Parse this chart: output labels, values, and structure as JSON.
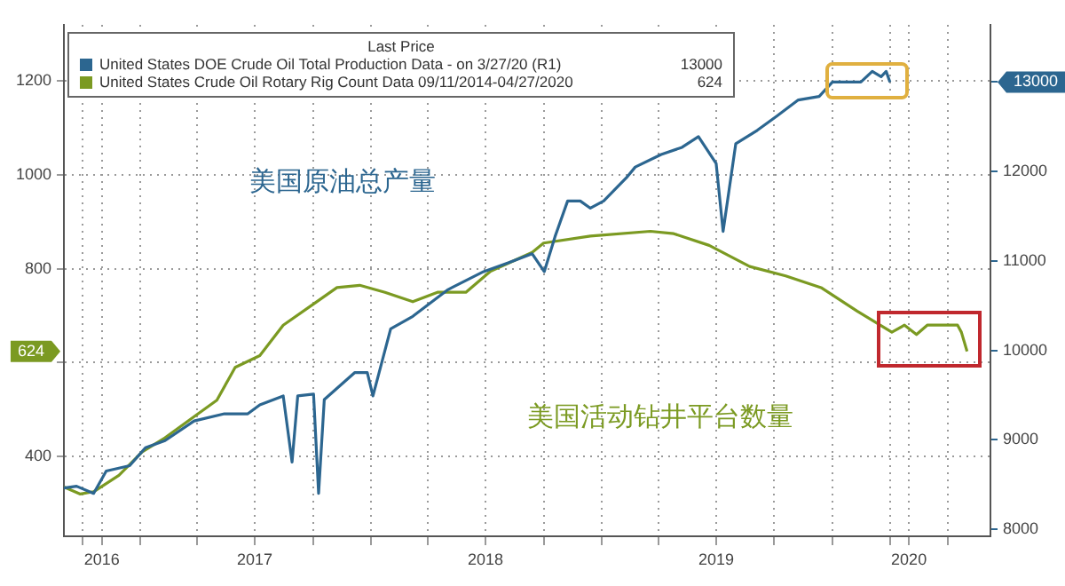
{
  "chart_data": {
    "type": "line",
    "legend_title": "Last Price",
    "legend": "top left",
    "grid": true,
    "series": [
      {
        "name": "United States DOE Crude Oil Total Production Data -  on 3/27/20  (R1)",
        "color": "#2c6690",
        "axis": "y2",
        "x": [
          "2016-09-02",
          "2016-09-22",
          "2016-10-19",
          "2016-11-08",
          "2016-12-15",
          "2017-01-09",
          "2017-02-09",
          "2017-03-27",
          "2017-05-14",
          "2017-06-20",
          "2017-07-09",
          "2017-08-15",
          "2017-08-29",
          "2017-09-07",
          "2017-10-02",
          "2017-10-10",
          "2017-10-19",
          "2017-12-06",
          "2017-12-26",
          "2018-01-04",
          "2018-02-01",
          "2018-03-08",
          "2018-05-03",
          "2018-06-28",
          "2018-08-07",
          "2018-09-13",
          "2018-10-02",
          "2018-10-19",
          "2018-11-08",
          "2018-11-28",
          "2018-12-14",
          "2019-01-04",
          "2019-02-09",
          "2019-02-23",
          "2019-04-05",
          "2019-05-08",
          "2019-06-03",
          "2019-07-01",
          "2019-07-12",
          "2019-08-01",
          "2019-09-04",
          "2019-10-05",
          "2019-11-08",
          "2019-12-11",
          "2020-01-01",
          "2020-02-15",
          "2020-03-04",
          "2020-03-18",
          "2020-03-26",
          "2020-04-01"
        ],
        "values": [
          8460,
          8480,
          8400,
          8650,
          8710,
          8910,
          8990,
          9210,
          9290,
          9290,
          9390,
          9490,
          8750,
          9490,
          9510,
          8400,
          9450,
          9750,
          9750,
          9490,
          10240,
          10380,
          10680,
          10880,
          10980,
          11080,
          10880,
          11270,
          11670,
          11670,
          11590,
          11670,
          11930,
          12050,
          12190,
          12270,
          12390,
          12090,
          11330,
          12310,
          12460,
          12620,
          12800,
          12840,
          13000,
          13000,
          13120,
          13060,
          13120,
          13000
        ]
      },
      {
        "name": "United States Crude Oil Rotary Rig Count Data 09/11/2014-04/27/2020",
        "color": "#7b9a22",
        "x": [
          "2016-09-02",
          "2016-09-28",
          "2016-10-19",
          "2016-11-28",
          "2017-01-04",
          "2017-02-09",
          "2017-03-27",
          "2017-05-02",
          "2017-05-31",
          "2017-07-09",
          "2017-08-15",
          "2017-10-02",
          "2017-11-08",
          "2017-12-14",
          "2018-01-23",
          "2018-03-08",
          "2018-04-16",
          "2018-05-31",
          "2018-07-09",
          "2018-09-13",
          "2018-10-01",
          "2018-12-14",
          "2019-03-19",
          "2019-04-25",
          "2019-06-20",
          "2019-08-23",
          "2019-10-19",
          "2019-12-14",
          "2020-02-09",
          "2020-04-04",
          "2020-04-24",
          "2020-05-13",
          "2020-05-30",
          "2020-07-17",
          "2020-07-23",
          "2020-08-01"
        ],
        "values": [
          335,
          320,
          325,
          360,
          410,
          440,
          485,
          520,
          590,
          615,
          680,
          725,
          760,
          765,
          750,
          730,
          750,
          750,
          795,
          835,
          855,
          870,
          880,
          875,
          850,
          805,
          785,
          760,
          710,
          665,
          680,
          660,
          680,
          680,
          665,
          624
        ]
      }
    ],
    "xlim": [
      "2016-09-02",
      "2020-09-07"
    ],
    "xticks": [
      {
        "value": "2016-10-01",
        "label": null
      },
      {
        "value": "2016-11-01",
        "label": "2016"
      },
      {
        "value": "2017-01-01",
        "label": null
      },
      {
        "value": "2017-04-01",
        "label": null
      },
      {
        "value": "2017-07-01",
        "label": "2017"
      },
      {
        "value": "2017-10-01",
        "label": null
      },
      {
        "value": "2018-01-01",
        "label": null
      },
      {
        "value": "2018-04-01",
        "label": null
      },
      {
        "value": "2018-07-01",
        "label": "2018"
      },
      {
        "value": "2018-10-01",
        "label": null
      },
      {
        "value": "2019-01-01",
        "label": null
      },
      {
        "value": "2019-04-01",
        "label": null
      },
      {
        "value": "2019-07-01",
        "label": "2019"
      },
      {
        "value": "2019-10-01",
        "label": null
      },
      {
        "value": "2020-01-01",
        "label": null
      },
      {
        "value": "2020-04-01",
        "label": null
      },
      {
        "value": "2020-05-01",
        "label": "2020"
      },
      {
        "value": "2020-07-01",
        "label": null
      }
    ],
    "ylim": [
      230,
      1320
    ],
    "yticks": [
      400,
      {
        "value": 600,
        "label": null
      },
      800,
      1000,
      1200
    ],
    "y2lim": [
      7920,
      13640
    ],
    "y2ticks": [
      8000,
      9000,
      10000,
      11000,
      12000,
      {
        "value": 13000,
        "label": null
      }
    ],
    "annotations": [
      "13000",
      "624",
      "美国原油总产量",
      "美国活动钻井平台数量"
    ]
  }
}
